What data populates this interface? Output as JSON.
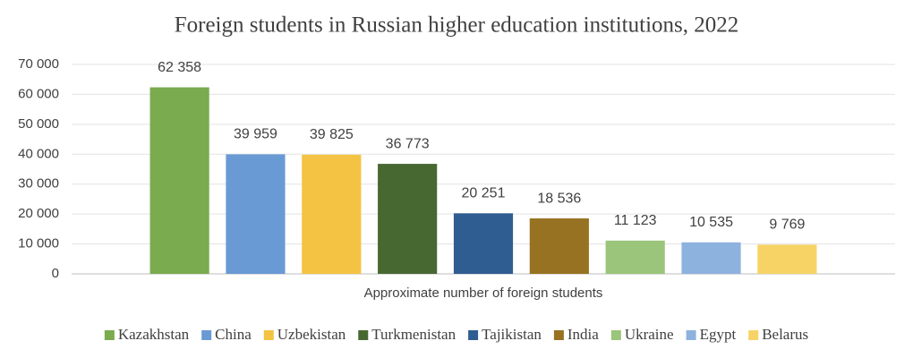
{
  "chart_data": {
    "type": "bar",
    "title": "Foreign students in Russian higher education institutions, 2022",
    "categories": [
      "Approximate number of foreign students"
    ],
    "series": [
      {
        "name": "Kazakhstan",
        "color": "#7aab4f",
        "values": [
          62358
        ],
        "value_labels": [
          "62 358"
        ]
      },
      {
        "name": "China",
        "color": "#6a9ad4",
        "values": [
          39959
        ],
        "value_labels": [
          "39 959"
        ]
      },
      {
        "name": "Uzbekistan",
        "color": "#f4c343",
        "values": [
          39825
        ],
        "value_labels": [
          "39 825"
        ]
      },
      {
        "name": "Turkmenistan",
        "color": "#486832",
        "values": [
          36773
        ],
        "value_labels": [
          "36 773"
        ]
      },
      {
        "name": "Tajikistan",
        "color": "#2f5d91",
        "values": [
          20251
        ],
        "value_labels": [
          "20 251"
        ]
      },
      {
        "name": "India",
        "color": "#977222",
        "values": [
          18536
        ],
        "value_labels": [
          "18 536"
        ]
      },
      {
        "name": "Ukraine",
        "color": "#9ac57a",
        "values": [
          11123
        ],
        "value_labels": [
          "11 123"
        ]
      },
      {
        "name": "Egypt",
        "color": "#8eb2de",
        "values": [
          10535
        ],
        "value_labels": [
          "10 535"
        ]
      },
      {
        "name": "Belarus",
        "color": "#f7d366",
        "values": [
          9769
        ],
        "value_labels": [
          "9 769"
        ]
      }
    ],
    "ylim": [
      0,
      70000
    ],
    "yticks": [
      0,
      {
        "value": 10000,
        "label": "10 000"
      },
      {
        "value": 20000,
        "label": "20 000"
      },
      {
        "value": 30000,
        "label": "30 000"
      },
      {
        "value": 40000,
        "label": "40 000"
      },
      {
        "value": 50000,
        "label": "50 000"
      },
      {
        "value": 60000,
        "label": "60 000"
      },
      {
        "value": 70000,
        "label": "70 000"
      }
    ],
    "grid": true,
    "legend": "bottom"
  }
}
